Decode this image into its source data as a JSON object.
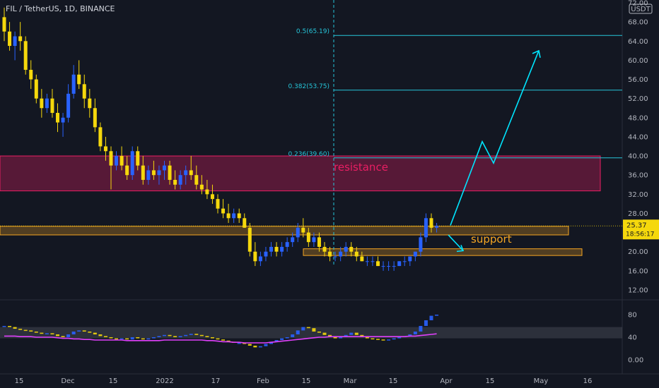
{
  "chart_data": {
    "type": "candlestick",
    "title": "FIL / TetherUS, 1D, BINANCE",
    "currency_badge": "USDT",
    "y_ticks": [
      "12.00",
      "16.00",
      "20.00",
      "24.00",
      "28.00",
      "32.00",
      "36.00",
      "40.00",
      "44.00",
      "48.00",
      "52.00",
      "56.00",
      "60.00",
      "64.00",
      "68.00",
      "72.00"
    ],
    "x_ticks": [
      "15",
      "Dec",
      "15",
      "2022",
      "17",
      "Feb",
      "15",
      "Mar",
      "15",
      "Apr",
      "15",
      "May",
      "16"
    ],
    "ylim": [
      10,
      73
    ],
    "candles_ohlc": [
      [
        69,
        71,
        64,
        66
      ],
      [
        66,
        68,
        62,
        63
      ],
      [
        63,
        66,
        60,
        65
      ],
      [
        65,
        68,
        62,
        64
      ],
      [
        64,
        65,
        57,
        58
      ],
      [
        58,
        60,
        54,
        56
      ],
      [
        56,
        57,
        51,
        52
      ],
      [
        52,
        54,
        48,
        50
      ],
      [
        50,
        53,
        49,
        52
      ],
      [
        52,
        54,
        48,
        49
      ],
      [
        49,
        51,
        45,
        47
      ],
      [
        47,
        49,
        44,
        48
      ],
      [
        48,
        55,
        47,
        53
      ],
      [
        53,
        59,
        52,
        57
      ],
      [
        57,
        60,
        54,
        55
      ],
      [
        55,
        57,
        50,
        52
      ],
      [
        52,
        54,
        48,
        50
      ],
      [
        50,
        52,
        45,
        46
      ],
      [
        46,
        47,
        41,
        42
      ],
      [
        42,
        44,
        39,
        41
      ],
      [
        41,
        42,
        33,
        38
      ],
      [
        38,
        41,
        37,
        40
      ],
      [
        40,
        42,
        37,
        38
      ],
      [
        38,
        40,
        35,
        36
      ],
      [
        36,
        42,
        35,
        41
      ],
      [
        41,
        42,
        37,
        38
      ],
      [
        38,
        40,
        34,
        35
      ],
      [
        35,
        38,
        34,
        37
      ],
      [
        37,
        39,
        35,
        36
      ],
      [
        36,
        38,
        34,
        37
      ],
      [
        37,
        39,
        35,
        38
      ],
      [
        38,
        39,
        34,
        35
      ],
      [
        35,
        37,
        33,
        34
      ],
      [
        34,
        37,
        33,
        36
      ],
      [
        36,
        38,
        34,
        37
      ],
      [
        37,
        40,
        35,
        36
      ],
      [
        36,
        38,
        33,
        34
      ],
      [
        34,
        36,
        32,
        33
      ],
      [
        33,
        35,
        31,
        32
      ],
      [
        32,
        34,
        30,
        31
      ],
      [
        31,
        32,
        28,
        29
      ],
      [
        29,
        31,
        27,
        28
      ],
      [
        28,
        30,
        26,
        27
      ],
      [
        27,
        29,
        26,
        28
      ],
      [
        28,
        29,
        26,
        27
      ],
      [
        27,
        28,
        25,
        25
      ],
      [
        25,
        26,
        19,
        20
      ],
      [
        20,
        22,
        17,
        18
      ],
      [
        18,
        20,
        17,
        19
      ],
      [
        19,
        21,
        18,
        20
      ],
      [
        20,
        22,
        19,
        21
      ],
      [
        21,
        22,
        19,
        20
      ],
      [
        20,
        22,
        19,
        21
      ],
      [
        21,
        23,
        20,
        22
      ],
      [
        22,
        24,
        21,
        23
      ],
      [
        23,
        26,
        22,
        25
      ],
      [
        25,
        27,
        23,
        24
      ],
      [
        24,
        25,
        21,
        22
      ],
      [
        22,
        24,
        21,
        23
      ],
      [
        23,
        24,
        20,
        21
      ],
      [
        21,
        22,
        19,
        20
      ],
      [
        20,
        21,
        18,
        19
      ],
      [
        19,
        20,
        18,
        19
      ],
      [
        19,
        21,
        18,
        20
      ],
      [
        20,
        22,
        19,
        21
      ],
      [
        21,
        22,
        19,
        20
      ],
      [
        20,
        21,
        18,
        19
      ],
      [
        19,
        20,
        18,
        18
      ],
      [
        18,
        19,
        17,
        18
      ],
      [
        18,
        19,
        17,
        18
      ],
      [
        18,
        19,
        17,
        17
      ],
      [
        17,
        18,
        16,
        17
      ],
      [
        17,
        18,
        16,
        17
      ],
      [
        17,
        18,
        16,
        17
      ],
      [
        17,
        18,
        17,
        18
      ],
      [
        18,
        19,
        17,
        18
      ],
      [
        18,
        19,
        17,
        19
      ],
      [
        19,
        20,
        18,
        20
      ],
      [
        20,
        24,
        19,
        23
      ],
      [
        23,
        28,
        22,
        27
      ],
      [
        27,
        28,
        24,
        25
      ],
      [
        25,
        26,
        24,
        25.37
      ]
    ],
    "current_price": "25.37",
    "countdown": "18:56:17",
    "fib_levels": [
      {
        "label": "0.5(65.19)",
        "value": 65.19
      },
      {
        "label": "0.382(53.75)",
        "value": 53.75
      },
      {
        "label": "0.236(39.60)",
        "value": 39.6
      }
    ],
    "zones": [
      {
        "label": "resistance",
        "from": 32.7,
        "to": 40.0,
        "color": "#e91e63"
      },
      {
        "label": "support",
        "from": 23.5,
        "to": 25.3,
        "color": "#f5a623"
      },
      {
        "label": "",
        "from": 19.2,
        "to": 20.6,
        "color": "#f5a623"
      }
    ],
    "projection_path_prices": [
      25.5,
      43,
      38.5,
      62
    ],
    "oscillator": {
      "y_ticks": [
        "0.00",
        "40",
        "80"
      ],
      "band": [
        38,
        58
      ],
      "ylim": [
        -5,
        100
      ],
      "values": [
        60,
        58,
        55,
        53,
        52,
        50,
        48,
        46,
        47,
        45,
        42,
        40,
        45,
        50,
        52,
        50,
        48,
        45,
        42,
        40,
        38,
        36,
        38,
        36,
        40,
        38,
        36,
        38,
        40,
        42,
        44,
        42,
        40,
        42,
        44,
        46,
        44,
        42,
        40,
        38,
        36,
        34,
        32,
        30,
        30,
        28,
        25,
        22,
        24,
        28,
        32,
        35,
        38,
        40,
        45,
        52,
        58,
        56,
        50,
        48,
        44,
        40,
        38,
        40,
        44,
        48,
        44,
        40,
        38,
        37,
        36,
        35,
        36,
        38,
        40,
        42,
        45,
        50,
        60,
        70,
        78,
        80
      ],
      "ma_values": [
        42,
        42,
        42,
        41,
        41,
        41,
        40,
        40,
        40,
        40,
        39,
        38,
        38,
        37,
        37,
        36,
        36,
        35,
        35,
        35,
        35,
        35,
        35,
        34,
        34,
        34,
        34,
        34,
        34,
        34,
        35,
        35,
        35,
        35,
        35,
        35,
        35,
        35,
        34,
        34,
        33,
        32,
        32,
        31,
        31,
        30,
        30,
        30,
        30,
        30,
        31,
        32,
        33,
        34,
        35,
        36,
        37,
        38,
        39,
        40,
        40,
        41,
        41,
        41,
        41,
        41,
        41,
        41,
        41,
        41,
        41,
        41,
        41,
        41,
        41,
        41,
        42,
        42,
        43,
        44,
        45,
        46
      ]
    },
    "colors": {
      "up": "#2962ff",
      "down": "#f5d80c",
      "fib": "#26c6da",
      "projection": "#00e5ff",
      "ma": "#e040fb",
      "price_badge": "#f5d80c"
    }
  }
}
